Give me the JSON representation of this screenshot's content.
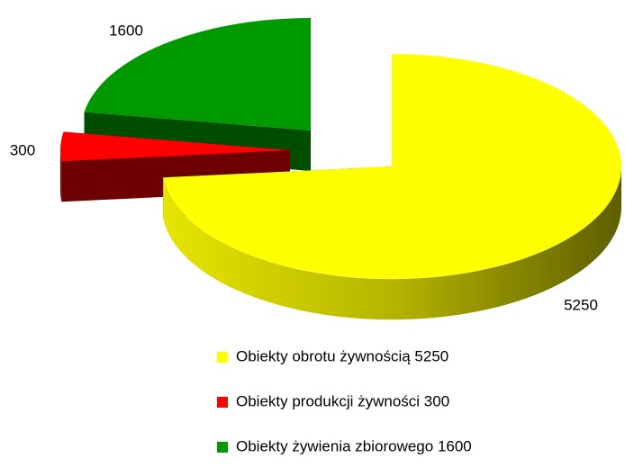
{
  "chart_data": {
    "type": "pie",
    "categories": [
      "Obiekty obrotu żywnością 5250",
      "Obiekty produkcji żywności 300",
      "Obiekty żywienia zbiorowego 1600"
    ],
    "values": [
      5250,
      300,
      1600
    ],
    "colors": [
      "#ffff00",
      "#ff0000",
      "#009900"
    ],
    "dark_colors": [
      "#6b6b00",
      "#6d0000",
      "#004d00"
    ],
    "legend": "bottom"
  }
}
